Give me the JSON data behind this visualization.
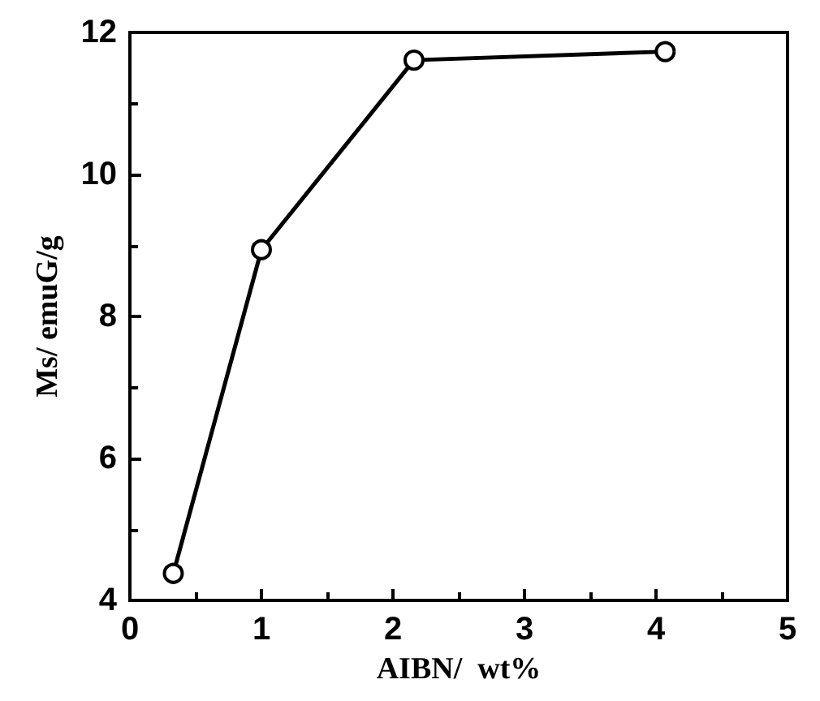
{
  "chart_data": {
    "type": "line",
    "xlabel": "AIBN/  wt%",
    "ylabel": "Ms/ emuG/g",
    "x": [
      0.33,
      1.0,
      2.16,
      4.07
    ],
    "series": [
      {
        "color": "#000000",
        "values": [
          4.38,
          8.94,
          11.61,
          11.73
        ]
      }
    ],
    "xlim": [
      0,
      5
    ],
    "xticks": [
      0,
      1,
      2,
      3,
      4,
      5
    ],
    "ylim": [
      4,
      12
    ],
    "yticks": [
      4,
      6,
      8,
      10,
      12
    ],
    "grid": false,
    "marker": "circle",
    "line_style": "solid"
  }
}
